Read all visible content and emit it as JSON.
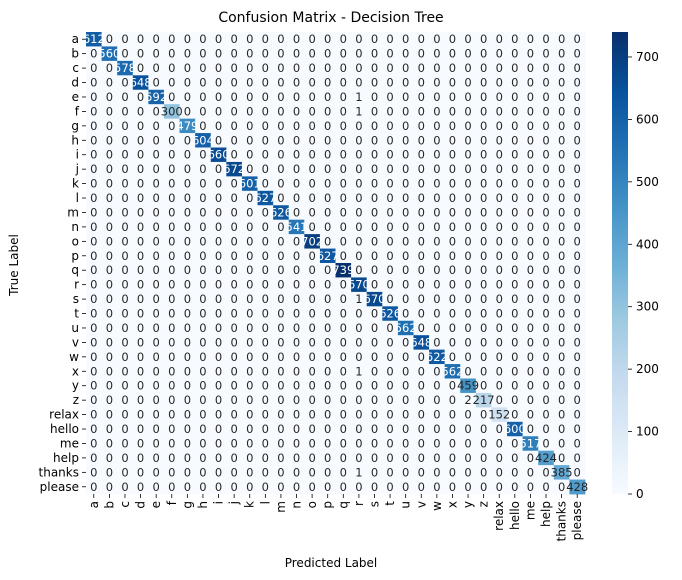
{
  "chart_data": {
    "type": "heatmap",
    "title": "Confusion Matrix - Decision Tree",
    "xlabel": "Predicted Label",
    "ylabel": "True Label",
    "labels": [
      "a",
      "b",
      "c",
      "d",
      "e",
      "f",
      "g",
      "h",
      "i",
      "j",
      "k",
      "l",
      "m",
      "n",
      "o",
      "p",
      "q",
      "r",
      "s",
      "t",
      "u",
      "v",
      "w",
      "x",
      "y",
      "z",
      "relax",
      "hello",
      "me",
      "help",
      "thanks",
      "please"
    ],
    "diagonal": [
      612,
      560,
      578,
      648,
      592,
      300,
      479,
      604,
      660,
      672,
      601,
      627,
      626,
      541,
      702,
      627,
      739,
      670,
      670,
      626,
      562,
      648,
      622,
      562,
      459,
      217,
      152,
      600,
      517,
      424,
      385,
      428
    ],
    "off_diagonal": [
      {
        "row": "e",
        "col": "r",
        "value": 1
      },
      {
        "row": "f",
        "col": "r",
        "value": 1
      },
      {
        "row": "s",
        "col": "r",
        "value": 1
      },
      {
        "row": "x",
        "col": "r",
        "value": 1
      },
      {
        "row": "z",
        "col": "y",
        "value": 2
      },
      {
        "row": "thanks",
        "col": "r",
        "value": 1
      }
    ],
    "colorbar": {
      "min": 0,
      "max": 740,
      "ticks": [
        0,
        100,
        200,
        300,
        400,
        500,
        600,
        700
      ]
    },
    "colormap": [
      "#f7fbff",
      "#deebf7",
      "#c6dbef",
      "#9ecae1",
      "#6baed6",
      "#4292c6",
      "#2171b5",
      "#08519c",
      "#08306b"
    ]
  }
}
